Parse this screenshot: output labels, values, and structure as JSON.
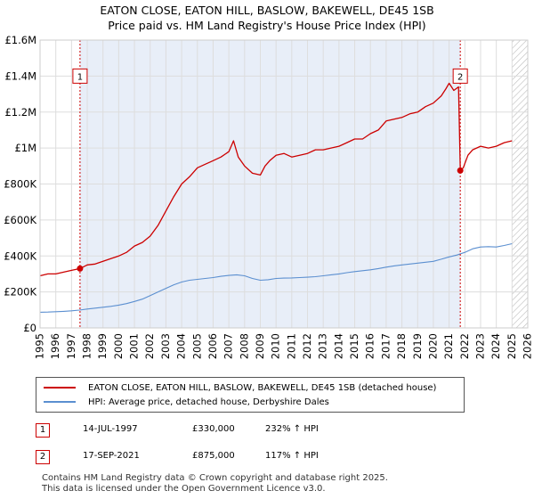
{
  "chart_data": {
    "type": "line",
    "title": "EATON CLOSE, EATON HILL, BASLOW, BAKEWELL, DE45 1SB",
    "subtitle": "Price paid vs. HM Land Registry's House Price Index (HPI)",
    "xlim": [
      1995,
      2026
    ],
    "ylim": [
      0,
      1600000
    ],
    "x_ticks": [
      "1995",
      "1996",
      "1997",
      "1998",
      "1999",
      "2000",
      "2001",
      "2002",
      "2003",
      "2004",
      "2005",
      "2006",
      "2007",
      "2008",
      "2009",
      "2010",
      "2011",
      "2012",
      "2013",
      "2014",
      "2015",
      "2016",
      "2017",
      "2018",
      "2019",
      "2020",
      "2021",
      "2022",
      "2023",
      "2024",
      "2025",
      "2026"
    ],
    "y_ticks": [
      {
        "value": 0,
        "label": "£0"
      },
      {
        "value": 200000,
        "label": "£200K"
      },
      {
        "value": 400000,
        "label": "£400K"
      },
      {
        "value": 600000,
        "label": "£600K"
      },
      {
        "value": 800000,
        "label": "£800K"
      },
      {
        "value": 1000000,
        "label": "£1M"
      },
      {
        "value": 1200000,
        "label": "£1.2M"
      },
      {
        "value": 1400000,
        "label": "£1.4M"
      },
      {
        "value": 1600000,
        "label": "£1.6M"
      }
    ],
    "ownership_shade": {
      "from": 1997.54,
      "to": 2021.71,
      "color": "#e8eef8"
    },
    "future_hatch_from": 2025.0,
    "series": [
      {
        "name": "EATON CLOSE, EATON HILL, BASLOW, BAKEWELL, DE45 1SB (detached house)",
        "color": "#cc0000",
        "x": [
          1995.0,
          1995.5,
          1996.0,
          1996.5,
          1997.0,
          1997.54,
          1998.0,
          1998.5,
          1999.0,
          1999.5,
          2000.0,
          2000.5,
          2001.0,
          2001.5,
          2002.0,
          2002.5,
          2003.0,
          2003.5,
          2004.0,
          2004.5,
          2005.0,
          2005.5,
          2006.0,
          2006.5,
          2007.0,
          2007.3,
          2007.6,
          2008.0,
          2008.5,
          2009.0,
          2009.3,
          2009.6,
          2010.0,
          2010.5,
          2011.0,
          2011.5,
          2012.0,
          2012.5,
          2013.0,
          2013.5,
          2014.0,
          2014.5,
          2015.0,
          2015.5,
          2016.0,
          2016.5,
          2017.0,
          2017.5,
          2018.0,
          2018.5,
          2019.0,
          2019.5,
          2020.0,
          2020.5,
          2020.8,
          2021.0,
          2021.3,
          2021.6,
          2021.71,
          2021.9,
          2022.2,
          2022.5,
          2023.0,
          2023.5,
          2024.0,
          2024.5,
          2025.0
        ],
        "y": [
          290000,
          300000,
          300000,
          310000,
          320000,
          330000,
          350000,
          355000,
          370000,
          385000,
          400000,
          420000,
          455000,
          475000,
          510000,
          570000,
          650000,
          730000,
          800000,
          840000,
          890000,
          910000,
          930000,
          950000,
          980000,
          1040000,
          950000,
          900000,
          860000,
          850000,
          900000,
          930000,
          960000,
          970000,
          950000,
          960000,
          970000,
          990000,
          990000,
          1000000,
          1010000,
          1030000,
          1050000,
          1050000,
          1080000,
          1100000,
          1150000,
          1160000,
          1170000,
          1190000,
          1200000,
          1230000,
          1250000,
          1290000,
          1330000,
          1360000,
          1320000,
          1340000,
          875000,
          890000,
          960000,
          990000,
          1010000,
          1000000,
          1010000,
          1030000,
          1040000
        ]
      },
      {
        "name": "HPI: Average price, detached house, Derbyshire Dales",
        "color": "#5b8fd0",
        "x": [
          1995.0,
          1995.5,
          1996.0,
          1996.5,
          1997.0,
          1997.5,
          1998.0,
          1998.5,
          1999.0,
          1999.5,
          2000.0,
          2000.5,
          2001.0,
          2001.5,
          2002.0,
          2002.5,
          2003.0,
          2003.5,
          2004.0,
          2004.5,
          2005.0,
          2005.5,
          2006.0,
          2006.5,
          2007.0,
          2007.5,
          2008.0,
          2008.5,
          2009.0,
          2009.5,
          2010.0,
          2010.5,
          2011.0,
          2011.5,
          2012.0,
          2012.5,
          2013.0,
          2013.5,
          2014.0,
          2014.5,
          2015.0,
          2015.5,
          2016.0,
          2016.5,
          2017.0,
          2017.5,
          2018.0,
          2018.5,
          2019.0,
          2019.5,
          2020.0,
          2020.5,
          2021.0,
          2021.5,
          2022.0,
          2022.5,
          2023.0,
          2023.5,
          2024.0,
          2024.5,
          2025.0
        ],
        "y": [
          87000,
          88000,
          90000,
          92000,
          95000,
          99000,
          105000,
          110000,
          115000,
          120000,
          127000,
          135000,
          147000,
          160000,
          180000,
          200000,
          220000,
          240000,
          255000,
          265000,
          270000,
          275000,
          280000,
          287000,
          292000,
          295000,
          290000,
          275000,
          265000,
          268000,
          275000,
          277000,
          278000,
          280000,
          282000,
          285000,
          290000,
          295000,
          300000,
          307000,
          313000,
          318000,
          323000,
          330000,
          338000,
          345000,
          350000,
          355000,
          360000,
          365000,
          370000,
          382000,
          395000,
          405000,
          420000,
          440000,
          450000,
          452000,
          450000,
          458000,
          468000
        ]
      }
    ],
    "annotations": [
      {
        "label": "1",
        "x": 1997.54,
        "y": 330000,
        "box_y": 1400000
      },
      {
        "label": "2",
        "x": 2021.71,
        "y": 875000,
        "box_y": 1400000
      }
    ]
  },
  "legend": {
    "red_label": "EATON CLOSE, EATON HILL, BASLOW, BAKEWELL, DE45 1SB (detached house)",
    "blue_label": "HPI: Average price, detached house, Derbyshire Dales"
  },
  "sales": [
    {
      "num": "1",
      "date": "14-JUL-1997",
      "price": "£330,000",
      "hpi": "232% ↑ HPI"
    },
    {
      "num": "2",
      "date": "17-SEP-2021",
      "price": "£875,000",
      "hpi": "117% ↑ HPI"
    }
  ],
  "footer": {
    "line1": "Contains HM Land Registry data © Crown copyright and database right 2025.",
    "line2": "This data is licensed under the Open Government Licence v3.0."
  },
  "colors": {
    "red": "#cc0000",
    "blue": "#5b8fd0",
    "shade": "#e8eef8",
    "grid": "#dddddd"
  }
}
